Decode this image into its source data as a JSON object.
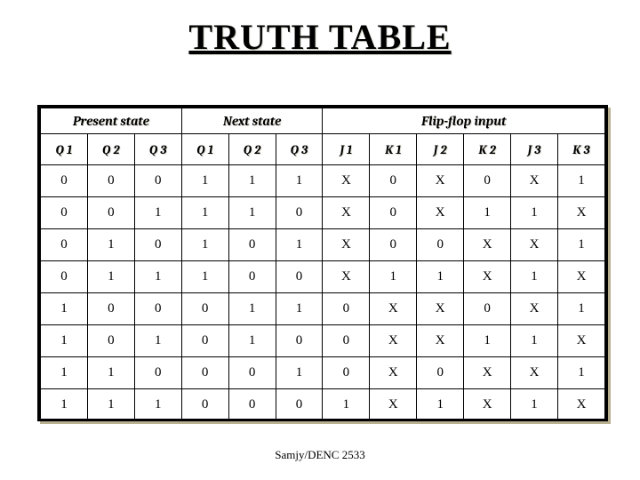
{
  "title": "TRUTH TABLE",
  "footer": "Samjy/DENC 2533",
  "table": {
    "groups": [
      {
        "label": "Present state",
        "span": 3
      },
      {
        "label": "Next state",
        "span": 3
      },
      {
        "label": "Flip-flop input",
        "span": 6
      }
    ],
    "columns": [
      "Q 1",
      "Q 2",
      "Q 3",
      "Q 1",
      "Q 2",
      "Q 3",
      "J 1",
      "K 1",
      "J 2",
      "K 2",
      "J 3",
      "K 3"
    ],
    "rows": [
      [
        "0",
        "0",
        "0",
        "1",
        "1",
        "1",
        "X",
        "0",
        "X",
        "0",
        "X",
        "1"
      ],
      [
        "0",
        "0",
        "1",
        "1",
        "1",
        "0",
        "X",
        "0",
        "X",
        "1",
        "1",
        "X"
      ],
      [
        "0",
        "1",
        "0",
        "1",
        "0",
        "1",
        "X",
        "0",
        "0",
        "X",
        "X",
        "1"
      ],
      [
        "0",
        "1",
        "1",
        "1",
        "0",
        "0",
        "X",
        "1",
        "1",
        "X",
        "1",
        "X"
      ],
      [
        "1",
        "0",
        "0",
        "0",
        "1",
        "1",
        "0",
        "X",
        "X",
        "0",
        "X",
        "1"
      ],
      [
        "1",
        "0",
        "1",
        "0",
        "1",
        "0",
        "0",
        "X",
        "X",
        "1",
        "1",
        "X"
      ],
      [
        "1",
        "1",
        "0",
        "0",
        "0",
        "1",
        "0",
        "X",
        "0",
        "X",
        "X",
        "1"
      ],
      [
        "1",
        "1",
        "1",
        "0",
        "0",
        "0",
        "1",
        "X",
        "1",
        "X",
        "1",
        "X"
      ]
    ]
  }
}
